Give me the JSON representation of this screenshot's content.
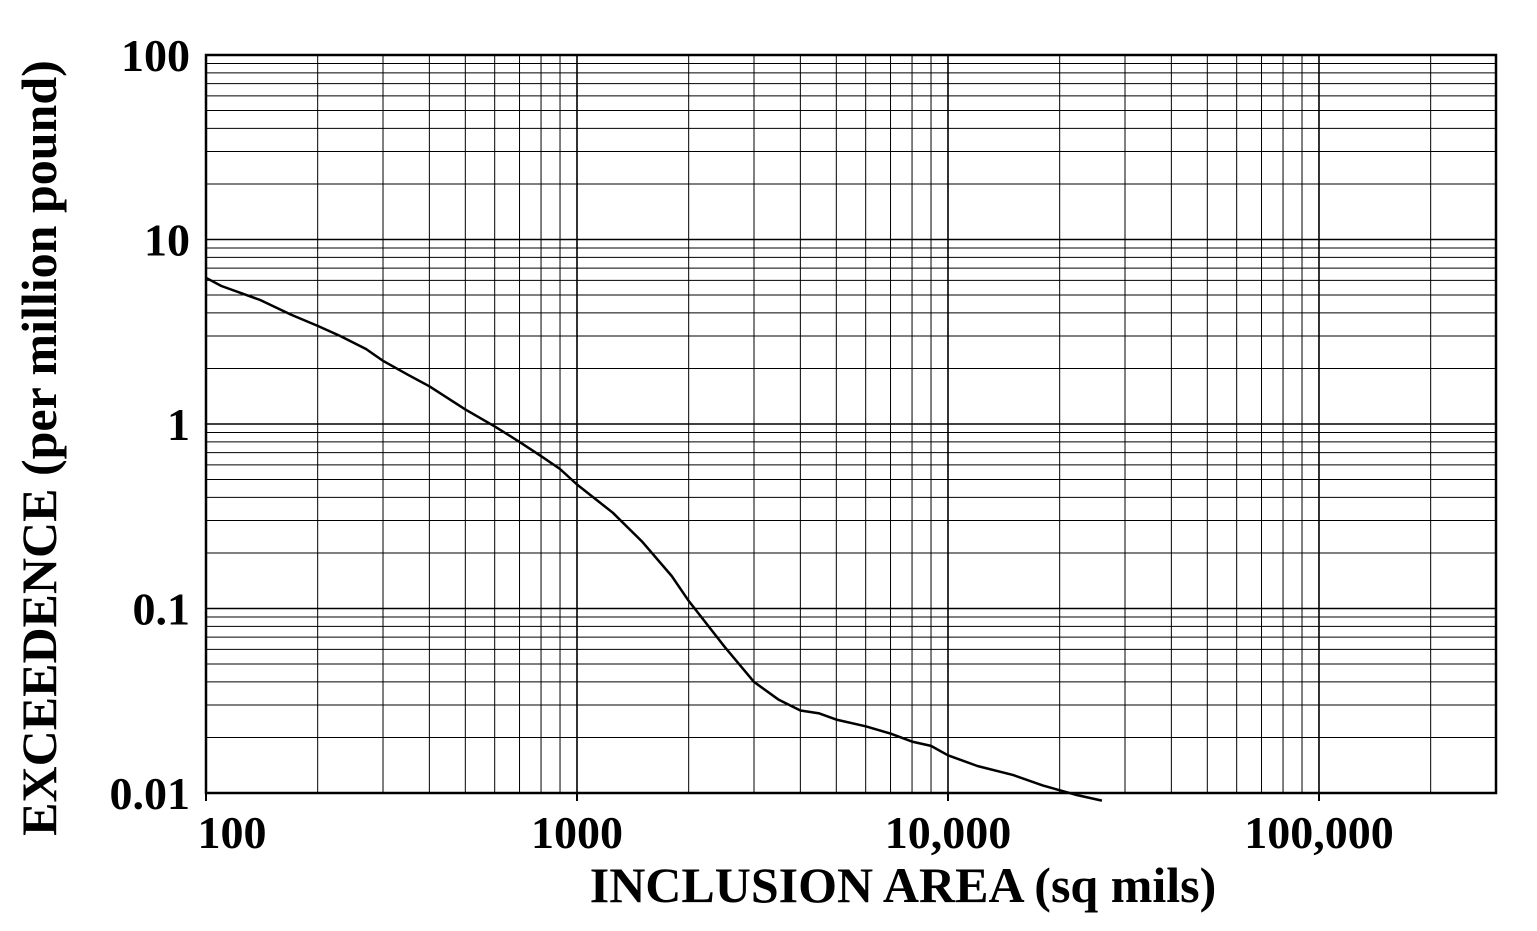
{
  "chart_data": {
    "type": "line",
    "title": "",
    "xlabel": "INCLUSION AREA (sq mils)",
    "ylabel": "EXCEEDENCE (per million pound)",
    "x_scale": "log",
    "y_scale": "log",
    "xlim": [
      100,
      300000
    ],
    "ylim": [
      0.01,
      100
    ],
    "grid": true,
    "x_tick_values": [
      100,
      1000,
      10000,
      100000
    ],
    "x_tick_labels": [
      "100",
      "1000",
      "10,000",
      "100,000"
    ],
    "y_tick_values": [
      0.01,
      0.1,
      1,
      10,
      100
    ],
    "y_tick_labels": [
      "0.01",
      "0.1",
      "1",
      "10",
      "100"
    ],
    "series": [
      {
        "color": "#000000",
        "x": [
          100,
          110,
          140,
          170,
          200,
          230,
          270,
          300,
          350,
          400,
          500,
          600,
          700,
          800,
          900,
          1000,
          1250,
          1500,
          1800,
          2000,
          2500,
          3000,
          3500,
          4000,
          4500,
          5000,
          6000,
          7000,
          8000,
          9000,
          10000,
          12000,
          15000,
          18000,
          22000,
          26000
        ],
        "y": [
          6.2,
          5.6,
          4.7,
          3.9,
          3.4,
          3.0,
          2.55,
          2.2,
          1.85,
          1.6,
          1.2,
          0.97,
          0.8,
          0.67,
          0.57,
          0.47,
          0.33,
          0.23,
          0.15,
          0.11,
          0.062,
          0.04,
          0.032,
          0.028,
          0.027,
          0.025,
          0.023,
          0.021,
          0.019,
          0.018,
          0.016,
          0.014,
          0.0125,
          0.011,
          0.0098,
          0.0091
        ]
      }
    ]
  }
}
